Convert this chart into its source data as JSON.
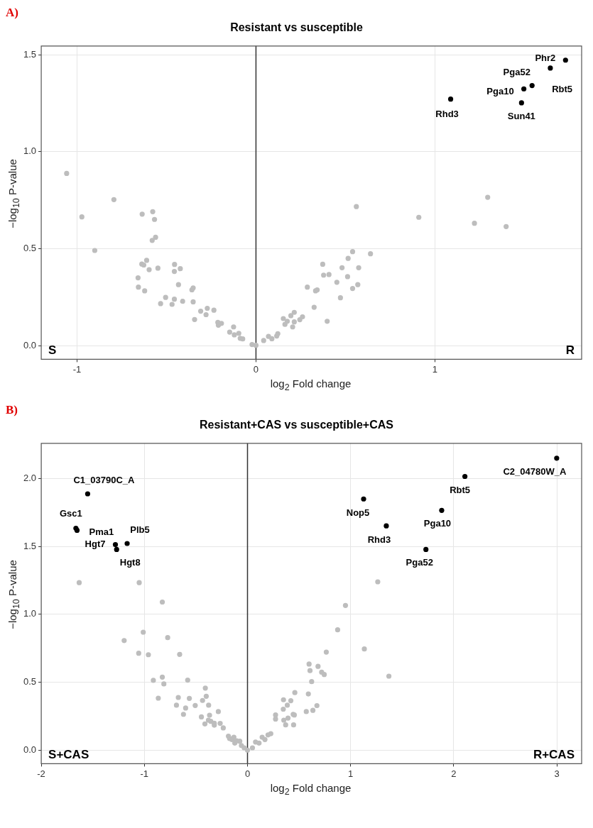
{
  "chart_data": [
    {
      "type": "scatter",
      "title": "Resistant vs susceptible",
      "xlabel": "log$_{2}$ Fold change",
      "ylabel": "−log$_{10}$ P-value",
      "xlim": [
        -1.2,
        1.82
      ],
      "ylim": [
        -0.07,
        1.545
      ],
      "xticks": [
        -1,
        0,
        1
      ],
      "yticks": [
        {
          "value": 0,
          "label": "0.0"
        },
        {
          "value": 0.5,
          "label": "0.5"
        },
        {
          "value": 1,
          "label": "1.0"
        },
        {
          "value": 1.5,
          "label": "1.5"
        }
      ],
      "grid": true,
      "legend": false,
      "marker": "circle",
      "series": [
        {
          "color": "#bdbdbd",
          "x": [
            -1.058,
            -0.794,
            -0.973,
            -0.901,
            -0.636,
            -0.577,
            -0.567,
            -0.561,
            -0.58,
            -0.638,
            -0.627,
            -0.611,
            -0.597,
            -0.548,
            -0.659,
            -0.657,
            -0.622,
            -0.455,
            -0.456,
            -0.423,
            -0.433,
            -0.358,
            -0.351,
            -0.505,
            -0.456,
            -0.533,
            -0.469,
            -0.41,
            -0.351,
            -0.343,
            -0.309,
            -0.272,
            -0.279,
            -0.235,
            -0.213,
            -0.21,
            -0.193,
            -0.147,
            -0.125,
            -0.121,
            -0.096,
            -0.088,
            -0.074,
            -0.022,
            0,
            0.043,
            0.07,
            0.089,
            0.122,
            0.116,
            0.153,
            0.162,
            0.175,
            0.195,
            0.214,
            0.205,
            0.214,
            0.245,
            0.26,
            0.287,
            0.325,
            0.398,
            0.333,
            0.342,
            0.373,
            0.378,
            0.408,
            0.452,
            0.472,
            0.481,
            0.512,
            0.515,
            0.54,
            0.54,
            0.569,
            0.574,
            0.64,
            0.561,
            0.91,
            1.221,
            1.295,
            1.398
          ],
          "values": [
            0.888,
            0.753,
            0.664,
            0.491,
            0.678,
            0.691,
            0.651,
            0.559,
            0.543,
            0.421,
            0.416,
            0.44,
            0.392,
            0.4,
            0.35,
            0.302,
            0.283,
            0.419,
            0.383,
            0.397,
            0.315,
            0.288,
            0.298,
            0.249,
            0.24,
            0.217,
            0.213,
            0.229,
            0.226,
            0.135,
            0.178,
            0.193,
            0.16,
            0.183,
            0.12,
            0.106,
            0.115,
            0.07,
            0.097,
            0.056,
            0.064,
            0.038,
            0.035,
            0.006,
            0.002,
            0.027,
            0.048,
            0.036,
            0.062,
            0.05,
            0.14,
            0.11,
            0.126,
            0.155,
            0.172,
            0.097,
            0.123,
            0.134,
            0.149,
            0.302,
            0.198,
            0.126,
            0.283,
            0.288,
            0.42,
            0.364,
            0.367,
            0.327,
            0.247,
            0.402,
            0.356,
            0.45,
            0.485,
            0.295,
            0.315,
            0.402,
            0.474,
            0.717,
            0.662,
            0.631,
            0.765,
            0.614
          ]
        },
        {
          "color": "#000000",
          "x": [
            1.088,
            1.484,
            1.497,
            1.543,
            1.645,
            1.73
          ],
          "values": [
            1.271,
            1.252,
            1.324,
            1.341,
            1.431,
            1.472
          ]
        }
      ],
      "ref_lines": [
        {
          "axis": "x",
          "value": 0,
          "color": "#333333"
        }
      ],
      "annotations": [
        "A)",
        "S",
        "R",
        {
          "text": "Rhd3",
          "x": 1.088,
          "y": 1.271
        },
        {
          "text": "Sun41",
          "x": 1.484,
          "y": 1.252
        },
        {
          "text": "Pga10",
          "x": 1.497,
          "y": 1.324
        },
        {
          "text": "Rbt5",
          "x": 1.543,
          "y": 1.341
        },
        {
          "text": "Pga52",
          "x": 1.645,
          "y": 1.431
        },
        {
          "text": "Phr2",
          "x": 1.73,
          "y": 1.472
        }
      ]
    },
    {
      "type": "scatter",
      "title": "Resistant+CAS vs susceptible+CAS",
      "xlabel": "log$_{2}$ Fold change",
      "ylabel": "−log$_{10}$ P-value",
      "xlim": [
        -2,
        3.24
      ],
      "ylim": [
        -0.1,
        2.26
      ],
      "xticks": [
        -2,
        -1,
        0,
        1,
        2,
        3
      ],
      "yticks": [
        {
          "value": 0,
          "label": "0.0"
        },
        {
          "value": 0.5,
          "label": "0.5"
        },
        {
          "value": 1,
          "label": "1.0"
        },
        {
          "value": 1.5,
          "label": "1.5"
        },
        {
          "value": 2,
          "label": "2.0"
        }
      ],
      "grid": true,
      "legend": false,
      "marker": "circle",
      "series": [
        {
          "color": "#bdbdbd",
          "x": [
            -1.632,
            -1.05,
            -0.826,
            -1.011,
            -1.196,
            -0.774,
            -1.055,
            -0.961,
            -0.658,
            -0.913,
            -0.826,
            -0.811,
            -0.58,
            -0.865,
            -0.671,
            -0.564,
            -0.689,
            -0.6,
            -0.621,
            -0.507,
            -0.409,
            -0.4,
            -0.436,
            -0.377,
            -0.368,
            -0.447,
            -0.413,
            -0.379,
            -0.356,
            -0.322,
            -0.322,
            -0.283,
            -0.265,
            -0.235,
            -0.185,
            -0.174,
            -0.151,
            -0.132,
            -0.123,
            -0.105,
            -0.075,
            -0.059,
            -0.032,
            0,
            0.048,
            0.078,
            0.112,
            0.142,
            0.169,
            0.199,
            0.226,
            0.272,
            0.272,
            0.349,
            0.347,
            0.352,
            0.37,
            0.386,
            0.393,
            0.42,
            0.443,
            0.454,
            0.447,
            0.459,
            0.57,
            0.634,
            0.673,
            0.59,
            0.622,
            0.597,
            0.606,
            0.684,
            0.719,
            0.744,
            0.764,
            0.874,
            0.95,
            1.133,
            1.263,
            1.371
          ],
          "values": [
            1.234,
            1.234,
            1.091,
            0.869,
            0.807,
            0.829,
            0.714,
            0.703,
            0.705,
            0.514,
            0.538,
            0.488,
            0.516,
            0.383,
            0.388,
            0.381,
            0.331,
            0.31,
            0.264,
            0.329,
            0.457,
            0.397,
            0.366,
            0.331,
            0.257,
            0.245,
            0.193,
            0.221,
            0.212,
            0.198,
            0.184,
            0.284,
            0.197,
            0.164,
            0.103,
            0.086,
            0.078,
            0.095,
            0.052,
            0.069,
            0.066,
            0.034,
            0.017,
            0,
            0.017,
            0.06,
            0.052,
            0.095,
            0.078,
            0.112,
            0.121,
            0.259,
            0.229,
            0.371,
            0.302,
            0.221,
            0.186,
            0.331,
            0.236,
            0.364,
            0.264,
            0.259,
            0.186,
            0.424,
            0.284,
            0.293,
            0.328,
            0.414,
            0.505,
            0.634,
            0.586,
            0.617,
            0.574,
            0.557,
            0.722,
            0.886,
            1.066,
            0.745,
            1.24,
            0.545
          ]
        },
        {
          "color": "#000000",
          "x": [
            -1.55,
            -1.664,
            -1.653,
            -1.281,
            -1.269,
            -1.167,
            1.126,
            1.346,
            1.73,
            1.883,
            2.108,
            2.998
          ],
          "values": [
            1.888,
            1.634,
            1.619,
            1.514,
            1.478,
            1.522,
            1.85,
            1.652,
            1.478,
            1.766,
            2.016,
            2.15
          ]
        }
      ],
      "ref_lines": [
        {
          "axis": "x",
          "value": 0,
          "color": "#333333"
        }
      ],
      "annotations": [
        "B)",
        "S+CAS",
        "R+CAS",
        {
          "text": "C1_03790C_A",
          "x": -1.55,
          "y": 1.888
        },
        {
          "text": "Gsc1",
          "x": -1.664,
          "y": 1.634
        },
        {
          "text": "Pma1",
          "x": -1.653,
          "y": 1.619
        },
        {
          "text": "Hgt7",
          "x": -1.281,
          "y": 1.514
        },
        {
          "text": "Hgt8",
          "x": -1.269,
          "y": 1.478
        },
        {
          "text": "Plb5",
          "x": -1.167,
          "y": 1.522
        },
        {
          "text": "Nop5",
          "x": 1.126,
          "y": 1.85
        },
        {
          "text": "Rhd3",
          "x": 1.346,
          "y": 1.652
        },
        {
          "text": "Pga52",
          "x": 1.73,
          "y": 1.478
        },
        {
          "text": "Pga10",
          "x": 1.883,
          "y": 1.766
        },
        {
          "text": "Rbt5",
          "x": 2.108,
          "y": 2.016
        },
        {
          "text": "C2_04780W_A",
          "x": 2.998,
          "y": 2.15
        }
      ]
    }
  ]
}
